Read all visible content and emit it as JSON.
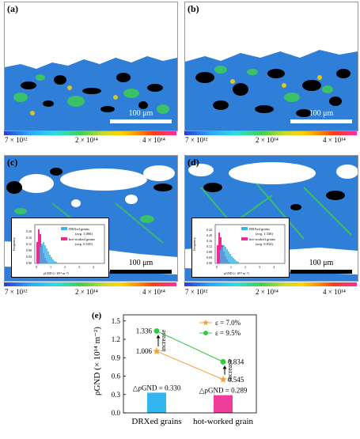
{
  "panels": {
    "a": {
      "label": "(a)",
      "scale_text": "100 μm"
    },
    "b": {
      "label": "(b)",
      "scale_text": "100 μm"
    },
    "c": {
      "label": "(c)",
      "scale_text": "100 μm"
    },
    "d": {
      "label": "(d)",
      "scale_text": "100 μm"
    },
    "e": {
      "label": "(e)"
    }
  },
  "colorbar_top": {
    "min": "7 × 10¹²",
    "mid": "2 × 10¹⁴",
    "max": "4 × 10¹⁴"
  },
  "colorbar_bottom": {
    "min": "7 × 10¹²",
    "mid": "2 × 10¹⁴",
    "max": "4 × 10¹⁴"
  },
  "inset_c": {
    "ylabel": "Frequency",
    "xlabel": "ρGND (× 10¹⁴ m⁻²)",
    "yticks": [
      "0.00",
      "0.04",
      "0.08",
      "0.12",
      "0.16",
      "0.20"
    ],
    "xticks": [
      "0",
      "1",
      "2",
      "3",
      "4"
    ],
    "legend": [
      {
        "name": "DRXed grains",
        "avg": "(avg. 1.006)",
        "color": "#3cb4e6"
      },
      {
        "name": "hot-worked grains",
        "avg": "(avg. 0.545)",
        "color": "#f02890"
      }
    ]
  },
  "inset_d": {
    "ylabel": "Frequency",
    "xlabel": "ρGND (× 10¹⁴ m⁻²)",
    "yticks": [
      "0.00",
      "0.04",
      "0.08",
      "0.12",
      "0.16",
      "0.20",
      "0.24"
    ],
    "xticks": [
      "0",
      "1",
      "2",
      "3",
      "4"
    ],
    "legend": [
      {
        "name": "DRXed grains",
        "avg": "(avg. 1.336)",
        "color": "#3cb4e6"
      },
      {
        "name": "hot-worked grains",
        "avg": "(avg. 0.834)",
        "color": "#f02890"
      }
    ]
  },
  "chart_data": {
    "type": "bar",
    "categories": [
      "DRXed grains",
      "hot-worked grain"
    ],
    "ylabel": "ρGND (× 10¹⁴ m⁻²)",
    "ylim": [
      0,
      1.6
    ],
    "yticks": [
      "0.0",
      "0.3",
      "0.6",
      "0.9",
      "1.2",
      "1.5"
    ],
    "bars": {
      "values": [
        0.33,
        0.289
      ],
      "colors": [
        "#33b5f0",
        "#f03c9a"
      ],
      "labels": [
        "△ρGND = 0.330",
        "△ρGND = 0.289"
      ]
    },
    "series": [
      {
        "name": "ε = 7.0%",
        "values": [
          1.006,
          0.545
        ],
        "color": "#f5a040",
        "marker": "star",
        "point_labels": [
          "1.006",
          "0.545"
        ]
      },
      {
        "name": "ε = 9.5%",
        "values": [
          1.336,
          0.834
        ],
        "color": "#2ecc40",
        "marker": "circle",
        "point_labels": [
          "1.336",
          "0.834"
        ]
      }
    ],
    "annotations": [
      "increase",
      "increase"
    ],
    "legend_position": "top-right"
  }
}
